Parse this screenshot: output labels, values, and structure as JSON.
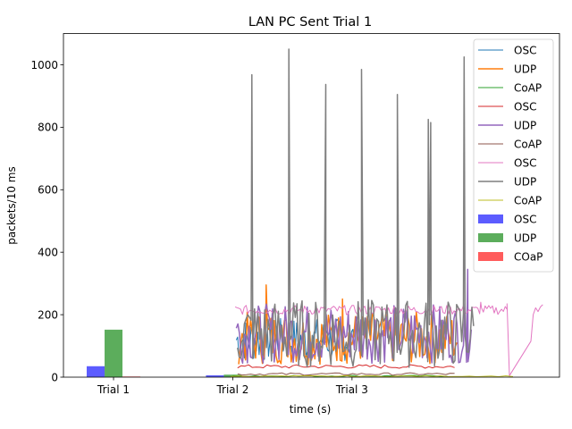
{
  "chart_data": {
    "type": "line",
    "title": "LAN PC Sent Trial 1",
    "xlabel": "time (s)",
    "ylabel": "packets/10 ms",
    "ylim": [
      0,
      1100
    ],
    "xlim": [
      -0.42,
      3.74
    ],
    "yticks": [
      0,
      200,
      400,
      600,
      800,
      1000
    ],
    "categories": [
      "Trial 1",
      "Trial 2",
      "Trial 3"
    ],
    "category_positions": [
      0,
      1,
      2
    ],
    "grid": false,
    "legend_position": "top-right",
    "bar_series": [
      {
        "name": "OSC",
        "color": "#3333ff",
        "values": [
          35,
          6,
          0
        ]
      },
      {
        "name": "UDP",
        "color": "#339933",
        "values": [
          152,
          8,
          0
        ]
      },
      {
        "name": "COaP",
        "color": "#ff3333",
        "values": [
          2,
          1,
          0
        ]
      }
    ],
    "line_series": [
      {
        "name": "OSC",
        "color": "#1f77b4",
        "width": 1.0,
        "x_range": [
          1.03,
          2.03
        ],
        "base": 120,
        "amp": 70,
        "points": 90,
        "spikes": []
      },
      {
        "name": "UDP",
        "color": "#ff7f0e",
        "width": 1.5,
        "x_range": [
          1.05,
          2.88
        ],
        "base": 125,
        "amp": 85,
        "points": 130,
        "spikes": [
          [
            1.28,
            295
          ],
          [
            1.92,
            250
          ]
        ]
      },
      {
        "name": "CoAP",
        "color": "#2ca02c",
        "width": 1.0,
        "x_range": [
          1.0,
          2.8
        ],
        "base": 4,
        "amp": 2,
        "points": 40,
        "spikes": []
      },
      {
        "name": "OSC",
        "color": "#d62728",
        "width": 1.0,
        "x_range": [
          1.04,
          2.86
        ],
        "base": 34,
        "amp": 6,
        "points": 60,
        "spikes": []
      },
      {
        "name": "UDP",
        "color": "#9467bd",
        "width": 1.5,
        "x_range": [
          1.03,
          3.0
        ],
        "base": 140,
        "amp": 95,
        "points": 150,
        "spikes": [
          [
            2.97,
            345
          ]
        ]
      },
      {
        "name": "CoAP",
        "color": "#8c564b",
        "width": 1.0,
        "x_range": [
          1.04,
          2.86
        ],
        "base": 10,
        "amp": 4,
        "points": 50,
        "spikes": []
      },
      {
        "name": "OSC",
        "color": "#e377c2",
        "width": 1.0,
        "x_range": [
          1.02,
          3.3
        ],
        "base": 215,
        "amp": 15,
        "points": 150,
        "spikes": [
          [
            3.08,
            240
          ]
        ],
        "tail": [
          [
            3.3,
            235
          ],
          [
            3.32,
            5
          ],
          [
            3.5,
            115
          ],
          [
            3.52,
            200
          ],
          [
            3.54,
            222
          ],
          [
            3.56,
            210
          ],
          [
            3.58,
            225
          ],
          [
            3.6,
            232
          ]
        ]
      },
      {
        "name": "UDP",
        "color": "#7f7f7f",
        "width": 1.5,
        "x_range": [
          1.04,
          3.02
        ],
        "base": 140,
        "amp": 110,
        "points": 140,
        "spikes": [
          [
            1.16,
            968
          ],
          [
            1.47,
            1050
          ],
          [
            1.78,
            937
          ],
          [
            2.08,
            985
          ],
          [
            2.38,
            905
          ],
          [
            2.64,
            825
          ],
          [
            2.66,
            815
          ],
          [
            2.94,
            1025
          ]
        ]
      },
      {
        "name": "CoAP",
        "color": "#bcbd22",
        "width": 1.0,
        "x_range": [
          0.98,
          3.35
        ],
        "base": 3,
        "amp": 1.5,
        "points": 40,
        "spikes": []
      }
    ]
  }
}
